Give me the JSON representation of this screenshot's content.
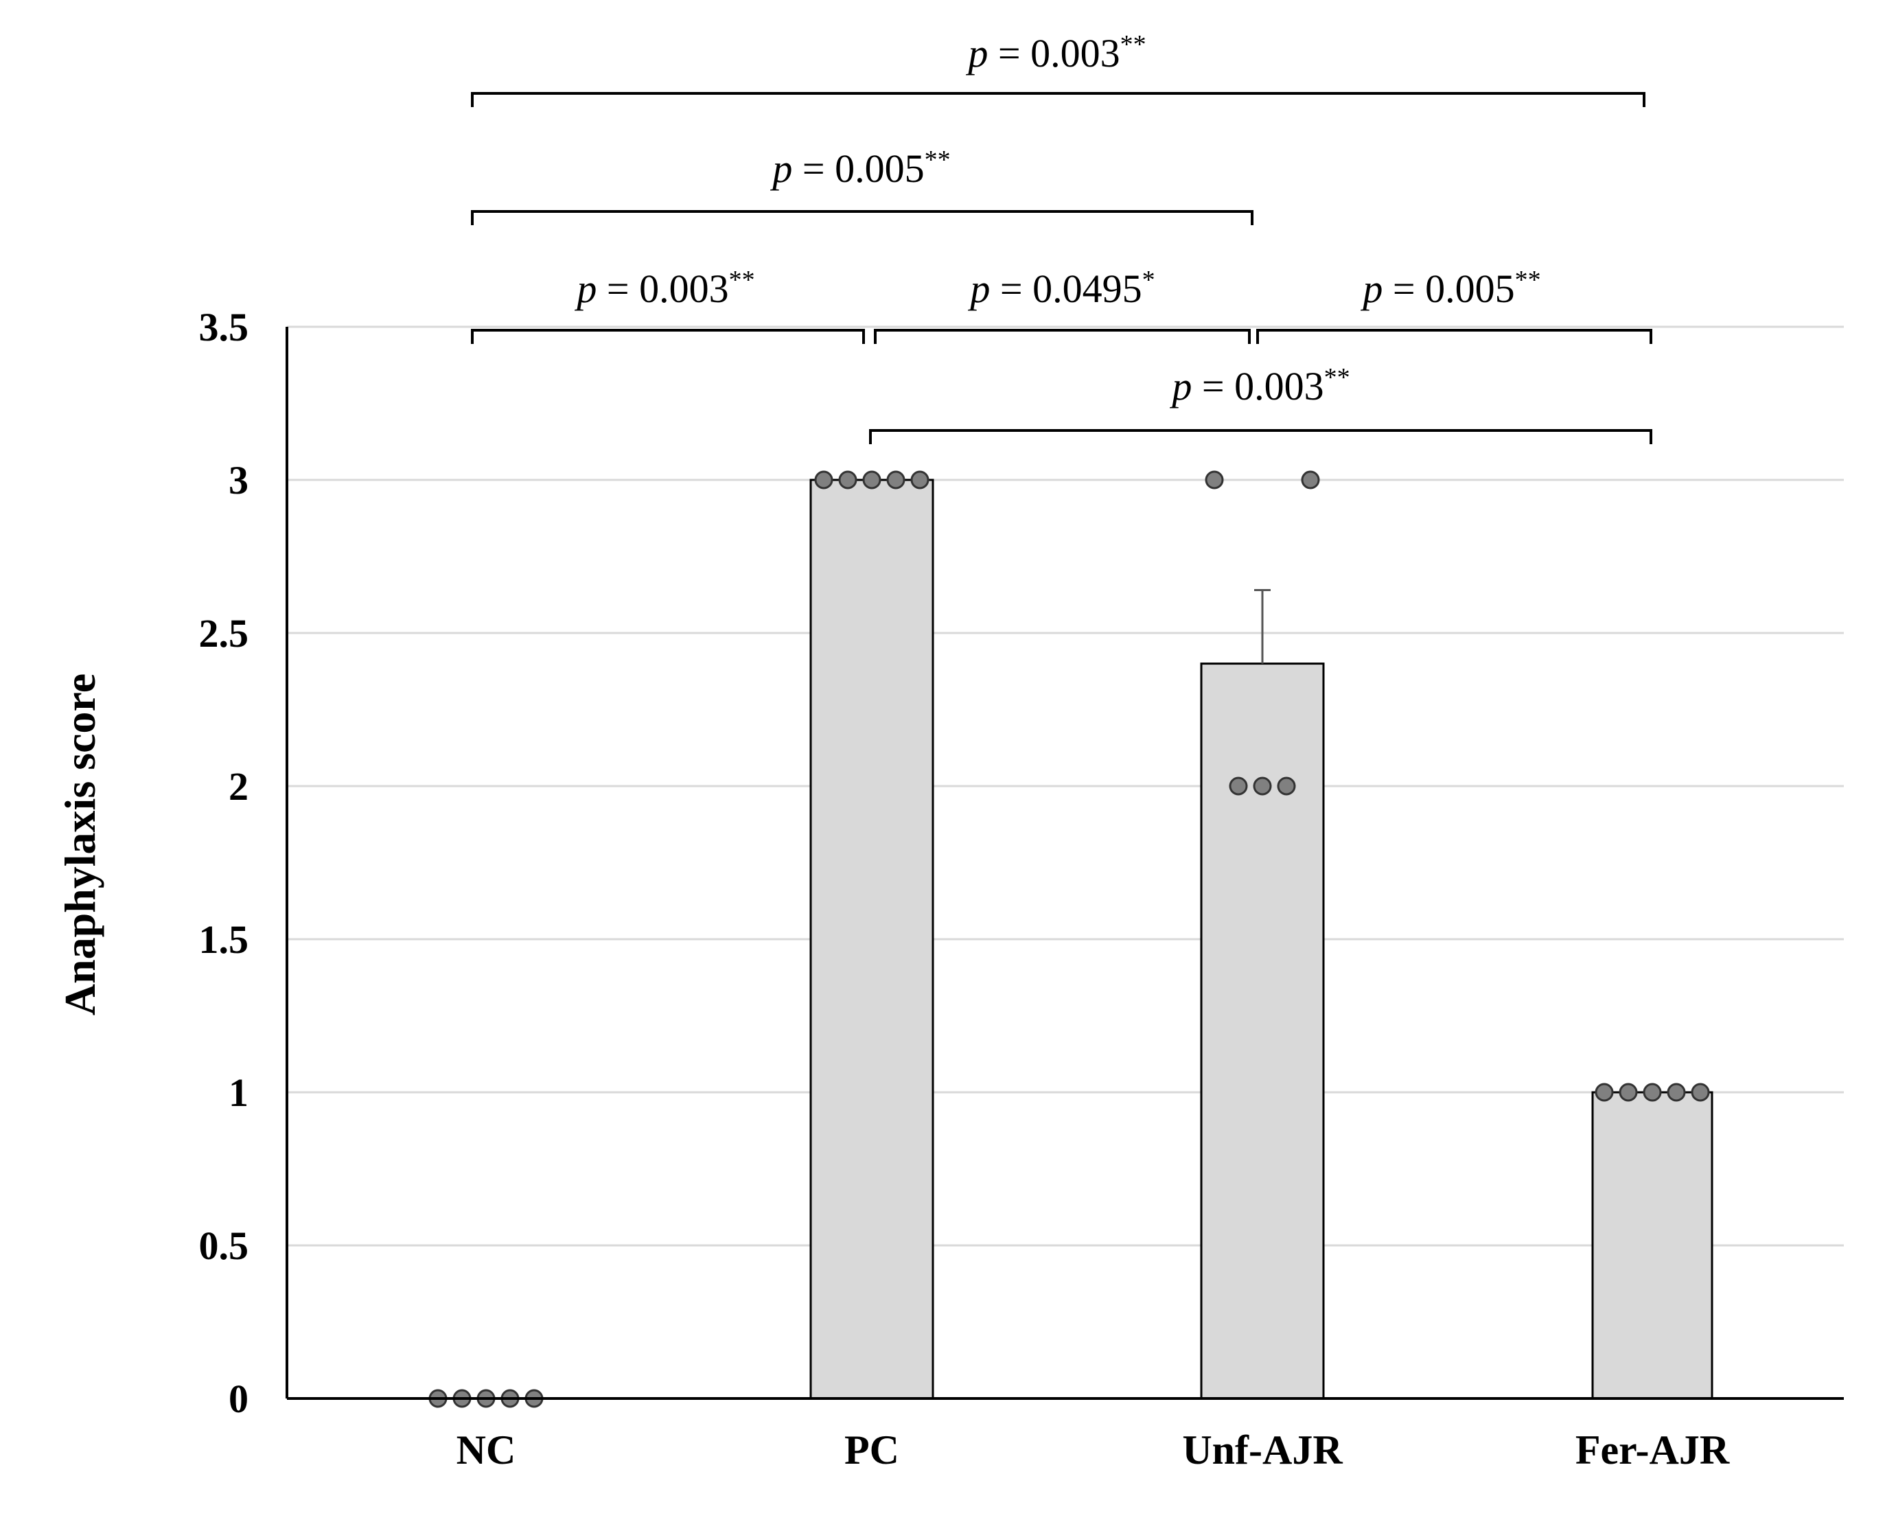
{
  "chart_data": {
    "type": "bar",
    "categories": [
      "NC",
      "PC",
      "Unf-AJR",
      "Fer-AJR"
    ],
    "values": [
      0,
      3,
      2.4,
      1
    ],
    "error": [
      0,
      0,
      0.24,
      0
    ],
    "points": [
      [
        0,
        0,
        0,
        0,
        0
      ],
      [
        3,
        3,
        3,
        3,
        3
      ],
      [
        3,
        3,
        2,
        2,
        2
      ],
      [
        1,
        1,
        1,
        1,
        1
      ]
    ],
    "ylabel": "Anaphylaxis score",
    "xlabel": "",
    "ylim": [
      0,
      3.5
    ],
    "yticks": [
      "0",
      "0.5",
      "1",
      "1.5",
      "2",
      "2.5",
      "3",
      "3.5"
    ],
    "grid": true,
    "colors": {
      "bar_fill": "#d9d9d9",
      "bar_stroke": "#000000",
      "point_fill": "#808080",
      "grid": "#d9d9d9"
    },
    "significance": [
      {
        "from": "NC",
        "to": "PC",
        "p_label": "p",
        "p_text": " = 0.003",
        "stars": "**"
      },
      {
        "from": "PC",
        "to": "Unf-AJR",
        "p_label": "p",
        "p_text": " = 0.0495",
        "stars": "*"
      },
      {
        "from": "Unf-AJR",
        "to": "Fer-AJR",
        "p_label": "p",
        "p_text": " = 0.005",
        "stars": "**"
      },
      {
        "from": "PC",
        "to": "Fer-AJR",
        "p_label": "p",
        "p_text": " = 0.003",
        "stars": "**"
      },
      {
        "from": "NC",
        "to": "Unf-AJR",
        "p_label": "p",
        "p_text": " = 0.005",
        "stars": "**"
      },
      {
        "from": "NC",
        "to": "Fer-AJR",
        "p_label": "p",
        "p_text": " = 0.003",
        "stars": "**"
      }
    ]
  }
}
